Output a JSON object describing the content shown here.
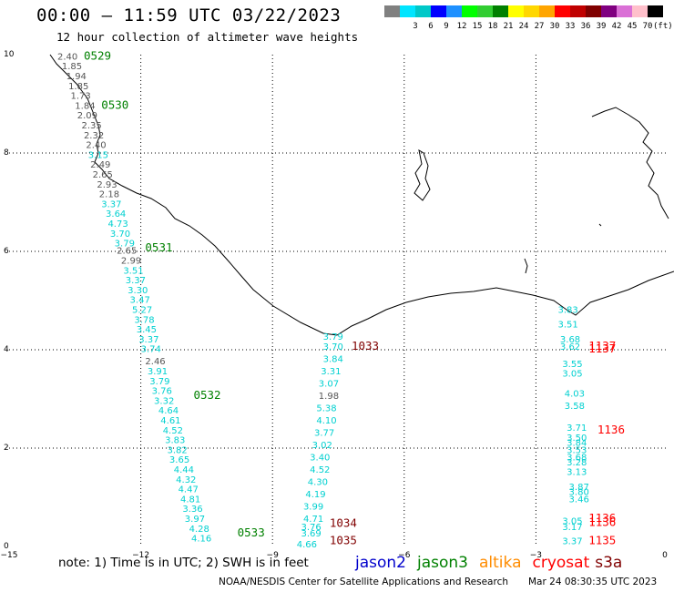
{
  "header": {
    "title": "00:00 – 11:59 UTC 03/22/2023",
    "subtitle": "12 hour collection of altimeter wave heights"
  },
  "colorbar": {
    "unit": "(ft)",
    "stops": [
      {
        "label": "",
        "color": "#808080"
      },
      {
        "label": "3",
        "color": "#00e5ff"
      },
      {
        "label": "6",
        "color": "#00c8c8"
      },
      {
        "label": "9",
        "color": "#0000ff"
      },
      {
        "label": "12",
        "color": "#1e90ff"
      },
      {
        "label": "15",
        "color": "#00ff00"
      },
      {
        "label": "18",
        "color": "#32cd32"
      },
      {
        "label": "21",
        "color": "#008000"
      },
      {
        "label": "24",
        "color": "#ffff00"
      },
      {
        "label": "27",
        "color": "#ffd700"
      },
      {
        "label": "30",
        "color": "#ffa500"
      },
      {
        "label": "33",
        "color": "#ff0000"
      },
      {
        "label": "36",
        "color": "#c00000"
      },
      {
        "label": "39",
        "color": "#800000"
      },
      {
        "label": "42",
        "color": "#800080"
      },
      {
        "label": "45",
        "color": "#da70d6"
      },
      {
        "label": "70",
        "color": "#ffc0cb"
      },
      {
        "label": "",
        "color": "#000000"
      }
    ]
  },
  "map": {
    "lon_range": [
      -15,
      0
    ],
    "lat_range": [
      0,
      10
    ],
    "x_ticks": [
      "−15",
      "−12",
      "−9",
      "−6",
      "−3",
      "0"
    ],
    "y_ticks": [
      "0",
      "2",
      "4",
      "6",
      "8",
      "10"
    ]
  },
  "passes": [
    {
      "label": "0529",
      "lon": -13.3,
      "lat": 9.9,
      "color": "#008000"
    },
    {
      "label": "0530",
      "lon": -12.9,
      "lat": 8.9,
      "color": "#008000"
    },
    {
      "label": "0531",
      "lon": -11.9,
      "lat": 6.0,
      "color": "#008000"
    },
    {
      "label": "0532",
      "lon": -10.8,
      "lat": 3.0,
      "color": "#008000"
    },
    {
      "label": "0533",
      "lon": -9.8,
      "lat": 0.2,
      "color": "#008000"
    },
    {
      "label": "1033",
      "lon": -7.2,
      "lat": 4.0,
      "color": "#800000"
    },
    {
      "label": "1034",
      "lon": -7.7,
      "lat": 0.4,
      "color": "#800000"
    },
    {
      "label": "1035",
      "lon": -7.7,
      "lat": 0.05,
      "color": "#800000"
    },
    {
      "label": "1137",
      "lon": -1.8,
      "lat": 4.0,
      "color": "#ff0000"
    },
    {
      "label": "1137",
      "lon": -1.8,
      "lat": 3.94,
      "color": "#ff0000"
    },
    {
      "label": "1136",
      "lon": -1.6,
      "lat": 2.3,
      "color": "#ff0000"
    },
    {
      "label": "1136",
      "lon": -1.8,
      "lat": 0.5,
      "color": "#ff0000"
    },
    {
      "label": "1136",
      "lon": -1.8,
      "lat": 0.42,
      "color": "#ff0000"
    },
    {
      "label": "1135",
      "lon": -1.8,
      "lat": 0.05,
      "color": "#ff0000"
    }
  ],
  "swh_values": [
    {
      "v": "2.40",
      "lon": -13.9,
      "lat": 9.9,
      "c": "g"
    },
    {
      "v": "1.85",
      "lon": -13.8,
      "lat": 9.7,
      "c": "g"
    },
    {
      "v": "1.94",
      "lon": -13.7,
      "lat": 9.5,
      "c": "g"
    },
    {
      "v": "1.85",
      "lon": -13.65,
      "lat": 9.3,
      "c": "g"
    },
    {
      "v": "1.73",
      "lon": -13.6,
      "lat": 9.1,
      "c": "g"
    },
    {
      "v": "1.84",
      "lon": -13.5,
      "lat": 8.9,
      "c": "g"
    },
    {
      "v": "2.09",
      "lon": -13.45,
      "lat": 8.7,
      "c": "g"
    },
    {
      "v": "2.35",
      "lon": -13.35,
      "lat": 8.5,
      "c": "g"
    },
    {
      "v": "2.32",
      "lon": -13.3,
      "lat": 8.3,
      "c": "g"
    },
    {
      "v": "2.40",
      "lon": -13.25,
      "lat": 8.1,
      "c": "g"
    },
    {
      "v": "3.15",
      "lon": -13.2,
      "lat": 7.9,
      "c": "c"
    },
    {
      "v": "2.49",
      "lon": -13.15,
      "lat": 7.7,
      "c": "g"
    },
    {
      "v": "2.65",
      "lon": -13.1,
      "lat": 7.5,
      "c": "g"
    },
    {
      "v": "2.93",
      "lon": -13.0,
      "lat": 7.3,
      "c": "g"
    },
    {
      "v": "2.18",
      "lon": -12.95,
      "lat": 7.1,
      "c": "g"
    },
    {
      "v": "3.37",
      "lon": -12.9,
      "lat": 6.9,
      "c": "c"
    },
    {
      "v": "3.64",
      "lon": -12.8,
      "lat": 6.7,
      "c": "c"
    },
    {
      "v": "4.73",
      "lon": -12.75,
      "lat": 6.5,
      "c": "c"
    },
    {
      "v": "3.70",
      "lon": -12.7,
      "lat": 6.3,
      "c": "c"
    },
    {
      "v": "3.79",
      "lon": -12.6,
      "lat": 6.1,
      "c": "c"
    },
    {
      "v": "2.65",
      "lon": -12.55,
      "lat": 5.95,
      "c": "g"
    },
    {
      "v": "2.99",
      "lon": -12.45,
      "lat": 5.75,
      "c": "g"
    },
    {
      "v": "3.51",
      "lon": -12.4,
      "lat": 5.55,
      "c": "c"
    },
    {
      "v": "3.37",
      "lon": -12.35,
      "lat": 5.35,
      "c": "c"
    },
    {
      "v": "3.30",
      "lon": -12.3,
      "lat": 5.15,
      "c": "c"
    },
    {
      "v": "3.47",
      "lon": -12.25,
      "lat": 4.95,
      "c": "c"
    },
    {
      "v": "5.27",
      "lon": -12.2,
      "lat": 4.75,
      "c": "c"
    },
    {
      "v": "3.78",
      "lon": -12.15,
      "lat": 4.55,
      "c": "c"
    },
    {
      "v": "3.45",
      "lon": -12.1,
      "lat": 4.35,
      "c": "c"
    },
    {
      "v": "3.37",
      "lon": -12.05,
      "lat": 4.15,
      "c": "c"
    },
    {
      "v": "3.74",
      "lon": -12.0,
      "lat": 3.95,
      "c": "c"
    },
    {
      "v": "2.46",
      "lon": -11.9,
      "lat": 3.7,
      "c": "g"
    },
    {
      "v": "3.91",
      "lon": -11.85,
      "lat": 3.5,
      "c": "c"
    },
    {
      "v": "3.79",
      "lon": -11.8,
      "lat": 3.3,
      "c": "c"
    },
    {
      "v": "3.76",
      "lon": -11.75,
      "lat": 3.1,
      "c": "c"
    },
    {
      "v": "3.32",
      "lon": -11.7,
      "lat": 2.9,
      "c": "c"
    },
    {
      "v": "4.64",
      "lon": -11.6,
      "lat": 2.7,
      "c": "c"
    },
    {
      "v": "4.61",
      "lon": -11.55,
      "lat": 2.5,
      "c": "c"
    },
    {
      "v": "4.52",
      "lon": -11.5,
      "lat": 2.3,
      "c": "c"
    },
    {
      "v": "3.83",
      "lon": -11.45,
      "lat": 2.1,
      "c": "c"
    },
    {
      "v": "3.82",
      "lon": -11.4,
      "lat": 1.9,
      "c": "c"
    },
    {
      "v": "3.65",
      "lon": -11.35,
      "lat": 1.7,
      "c": "c"
    },
    {
      "v": "4.44",
      "lon": -11.25,
      "lat": 1.5,
      "c": "c"
    },
    {
      "v": "4.32",
      "lon": -11.2,
      "lat": 1.3,
      "c": "c"
    },
    {
      "v": "4.47",
      "lon": -11.15,
      "lat": 1.1,
      "c": "c"
    },
    {
      "v": "4.81",
      "lon": -11.1,
      "lat": 0.9,
      "c": "c"
    },
    {
      "v": "3.36",
      "lon": -11.05,
      "lat": 0.7,
      "c": "c"
    },
    {
      "v": "3.97",
      "lon": -11.0,
      "lat": 0.5,
      "c": "c"
    },
    {
      "v": "4.28",
      "lon": -10.9,
      "lat": 0.3,
      "c": "c"
    },
    {
      "v": "4.16",
      "lon": -10.85,
      "lat": 0.1,
      "c": "c"
    },
    {
      "v": "3.79",
      "lon": -7.85,
      "lat": 4.2,
      "c": "c"
    },
    {
      "v": "3.70",
      "lon": -7.85,
      "lat": 4.0,
      "c": "c"
    },
    {
      "v": "3.84",
      "lon": -7.85,
      "lat": 3.75,
      "c": "c"
    },
    {
      "v": "3.31",
      "lon": -7.9,
      "lat": 3.5,
      "c": "c"
    },
    {
      "v": "3.07",
      "lon": -7.95,
      "lat": 3.25,
      "c": "c"
    },
    {
      "v": "1.98",
      "lon": -7.95,
      "lat": 3.0,
      "c": "g"
    },
    {
      "v": "5.38",
      "lon": -8.0,
      "lat": 2.75,
      "c": "c"
    },
    {
      "v": "4.10",
      "lon": -8.0,
      "lat": 2.5,
      "c": "c"
    },
    {
      "v": "3.77",
      "lon": -8.05,
      "lat": 2.25,
      "c": "c"
    },
    {
      "v": "3.02",
      "lon": -8.1,
      "lat": 2.0,
      "c": "c"
    },
    {
      "v": "3.40",
      "lon": -8.15,
      "lat": 1.75,
      "c": "c"
    },
    {
      "v": "4.52",
      "lon": -8.15,
      "lat": 1.5,
      "c": "c"
    },
    {
      "v": "4.30",
      "lon": -8.2,
      "lat": 1.25,
      "c": "c"
    },
    {
      "v": "4.19",
      "lon": -8.25,
      "lat": 1.0,
      "c": "c"
    },
    {
      "v": "3.99",
      "lon": -8.3,
      "lat": 0.75,
      "c": "c"
    },
    {
      "v": "4.71",
      "lon": -8.3,
      "lat": 0.5,
      "c": "c"
    },
    {
      "v": "3.76",
      "lon": -8.35,
      "lat": 0.33,
      "c": "c"
    },
    {
      "v": "3.69",
      "lon": -8.35,
      "lat": 0.2,
      "c": "c"
    },
    {
      "v": "4.66",
      "lon": -8.45,
      "lat": -0.02,
      "c": "c"
    },
    {
      "v": "3.83",
      "lon": -2.5,
      "lat": 4.75,
      "c": "c"
    },
    {
      "v": "3.51",
      "lon": -2.5,
      "lat": 4.45,
      "c": "c"
    },
    {
      "v": "3.68",
      "lon": -2.45,
      "lat": 4.15,
      "c": "c"
    },
    {
      "v": "3.62",
      "lon": -2.45,
      "lat": 4.0,
      "c": "c"
    },
    {
      "v": "3.55",
      "lon": -2.4,
      "lat": 3.65,
      "c": "c"
    },
    {
      "v": "3.05",
      "lon": -2.4,
      "lat": 3.45,
      "c": "c"
    },
    {
      "v": "4.03",
      "lon": -2.35,
      "lat": 3.05,
      "c": "c"
    },
    {
      "v": "3.58",
      "lon": -2.35,
      "lat": 2.8,
      "c": "c"
    },
    {
      "v": "3.71",
      "lon": -2.3,
      "lat": 2.35,
      "c": "c"
    },
    {
      "v": "3.50",
      "lon": -2.3,
      "lat": 2.15,
      "c": "c"
    },
    {
      "v": "3.84",
      "lon": -2.3,
      "lat": 2.05,
      "c": "c"
    },
    {
      "v": "3.53",
      "lon": -2.3,
      "lat": 1.9,
      "c": "c"
    },
    {
      "v": "3.68",
      "lon": -2.3,
      "lat": 1.75,
      "c": "c"
    },
    {
      "v": "3.28",
      "lon": -2.3,
      "lat": 1.65,
      "c": "c"
    },
    {
      "v": "3.13",
      "lon": -2.3,
      "lat": 1.45,
      "c": "c"
    },
    {
      "v": "3.87",
      "lon": -2.25,
      "lat": 1.15,
      "c": "c"
    },
    {
      "v": "3.80",
      "lon": -2.25,
      "lat": 1.05,
      "c": "c"
    },
    {
      "v": "3.46",
      "lon": -2.25,
      "lat": 0.9,
      "c": "c"
    },
    {
      "v": "3.05",
      "lon": -2.4,
      "lat": 0.45,
      "c": "c"
    },
    {
      "v": "3.17",
      "lon": -2.4,
      "lat": 0.33,
      "c": "c"
    },
    {
      "v": "3.37",
      "lon": -2.4,
      "lat": 0.05,
      "c": "c"
    }
  ],
  "note": "note: 1) Time is in UTC; 2) SWH is in feet",
  "legend": [
    {
      "name": "jason2",
      "color": "#0000cc"
    },
    {
      "name": "jason3",
      "color": "#008000"
    },
    {
      "name": "altika",
      "color": "#ff8c00"
    },
    {
      "name": "cryosat",
      "color": "#ff0000"
    },
    {
      "name": "s3a",
      "color": "#800000"
    }
  ],
  "footer": {
    "credit": "NOAA/NESDIS Center for Satellite Applications and Research",
    "timestamp": "Mar 24 08:30:35 UTC 2023"
  }
}
